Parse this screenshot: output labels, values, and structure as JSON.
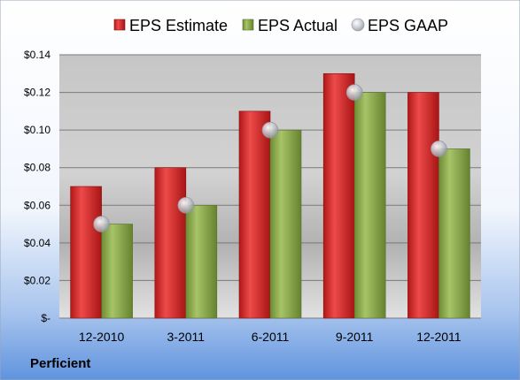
{
  "chart_data": {
    "type": "bar",
    "categories": [
      "12-2010",
      "3-2011",
      "6-2011",
      "9-2011",
      "12-2011"
    ],
    "series": [
      {
        "name": "EPS Estimate",
        "values": [
          0.07,
          0.08,
          0.11,
          0.13,
          0.12
        ],
        "color": "#d42a2a"
      },
      {
        "name": "EPS Actual",
        "values": [
          0.05,
          0.06,
          0.1,
          0.12,
          0.09
        ],
        "color": "#8aab4a"
      },
      {
        "name": "EPS GAAP",
        "values": [
          0.05,
          0.06,
          0.1,
          0.12,
          0.09
        ],
        "color": "#b9bdc6",
        "marker": "circle"
      }
    ],
    "ylim": [
      0,
      0.14
    ],
    "yticks": [
      0,
      0.02,
      0.04,
      0.06,
      0.08,
      0.1,
      0.12,
      0.14
    ],
    "ytick_labels": [
      "$-",
      "$0.02",
      "$0.04",
      "$0.06",
      "$0.08",
      "$0.10",
      "$0.12",
      "$0.14"
    ],
    "grid": true,
    "legend_position": "top"
  },
  "company": "Perficient"
}
